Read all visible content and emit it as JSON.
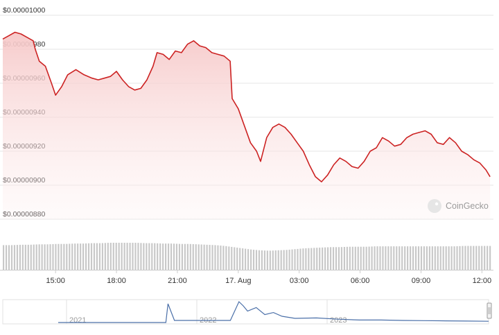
{
  "chart_data": {
    "type": "area",
    "title": "",
    "watermark": "CoinGecko",
    "y_ticks": [
      "$0.00001000",
      "$0.00000980",
      "$0.00000960",
      "$0.00000940",
      "$0.00000920",
      "$0.00000900",
      "$0.00000880"
    ],
    "y_tick_values": [
      1e-05,
      9.8e-06,
      9.6e-06,
      9.4e-06,
      9.2e-06,
      9e-06,
      8.8e-06
    ],
    "ylim": [
      8.8e-06,
      1e-05
    ],
    "x_ticks": [
      "15:00",
      "18:00",
      "21:00",
      "17. Aug",
      "03:00",
      "06:00",
      "09:00",
      "12:00"
    ],
    "x_tick_hours": [
      15,
      18,
      21,
      24,
      27,
      30,
      33,
      36
    ],
    "xlim_hours": [
      12.4,
      36.5
    ],
    "grid": true,
    "colors": {
      "line": "#cc2222",
      "fill_top": "#f6c8c8",
      "volume": "#c8c8c8",
      "navigator_line": "#4a6fa8",
      "grid": "#e6e6e6"
    },
    "series": [
      {
        "x": [
          12.4,
          12.7,
          13.0,
          13.3,
          13.6,
          13.9,
          14.0,
          14.2,
          14.5,
          14.8,
          15.0,
          15.3,
          15.6,
          16.0,
          16.4,
          16.8,
          17.1,
          17.4,
          17.7,
          18.0,
          18.3,
          18.6,
          18.9,
          19.2,
          19.5,
          19.8,
          20.0,
          20.3,
          20.6,
          20.9,
          21.2,
          21.5,
          21.8,
          22.1,
          22.4,
          22.7,
          23.0,
          23.3,
          23.6,
          23.7,
          24.0,
          24.3,
          24.6,
          24.9,
          25.1,
          25.4,
          25.7,
          26.0,
          26.3,
          26.6,
          26.9,
          27.2,
          27.5,
          27.8,
          28.1,
          28.4,
          28.7,
          29.0,
          29.3,
          29.6,
          29.9,
          30.2,
          30.5,
          30.8,
          31.1,
          31.4,
          31.7,
          32.0,
          32.3,
          32.6,
          32.9,
          33.2,
          33.5,
          33.8,
          34.1,
          34.4,
          34.7,
          35.0,
          35.3,
          35.6,
          35.9,
          36.2,
          36.4
        ],
        "y": [
          9.86e-06,
          9.88e-06,
          9.9e-06,
          9.89e-06,
          9.87e-06,
          9.85e-06,
          9.8e-06,
          9.73e-06,
          9.7e-06,
          9.6e-06,
          9.53e-06,
          9.58e-06,
          9.65e-06,
          9.68e-06,
          9.65e-06,
          9.63e-06,
          9.62e-06,
          9.63e-06,
          9.64e-06,
          9.67e-06,
          9.62e-06,
          9.58e-06,
          9.56e-06,
          9.57e-06,
          9.62e-06,
          9.7e-06,
          9.78e-06,
          9.77e-06,
          9.74e-06,
          9.79e-06,
          9.78e-06,
          9.83e-06,
          9.85e-06,
          9.82e-06,
          9.81e-06,
          9.78e-06,
          9.77e-06,
          9.76e-06,
          9.73e-06,
          9.51e-06,
          9.45e-06,
          9.35e-06,
          9.25e-06,
          9.2e-06,
          9.14e-06,
          9.28e-06,
          9.34e-06,
          9.36e-06,
          9.34e-06,
          9.3e-06,
          9.25e-06,
          9.2e-06,
          9.12e-06,
          9.05e-06,
          9.02e-06,
          9.06e-06,
          9.12e-06,
          9.16e-06,
          9.14e-06,
          9.11e-06,
          9.1e-06,
          9.14e-06,
          9.2e-06,
          9.22e-06,
          9.28e-06,
          9.26e-06,
          9.23e-06,
          9.24e-06,
          9.28e-06,
          9.3e-06,
          9.31e-06,
          9.32e-06,
          9.3e-06,
          9.25e-06,
          9.24e-06,
          9.28e-06,
          9.25e-06,
          9.2e-06,
          9.18e-06,
          9.15e-06,
          9.13e-06,
          9.09e-06,
          9.05e-06
        ]
      }
    ],
    "volume": {
      "x_start": 12.4,
      "x_end": 36.5,
      "count": 178,
      "values": [
        62,
        62,
        63,
        63,
        64,
        64,
        65,
        65,
        66,
        66,
        67,
        67,
        68,
        68,
        68,
        68,
        67,
        67,
        66,
        66,
        65,
        65,
        64,
        63,
        62,
        60,
        57,
        54,
        51,
        49,
        48,
        49,
        50,
        52,
        54,
        55,
        56,
        57,
        57,
        58,
        58,
        58,
        59,
        59,
        59,
        59,
        59,
        59,
        59,
        59,
        59,
        59,
        60,
        60,
        60,
        60
      ]
    },
    "navigator": {
      "ticks": [
        "2021",
        "2022",
        "2023"
      ],
      "tick_positions": [
        0.0,
        0.4,
        0.8
      ],
      "x": [
        0.0,
        0.12,
        0.22,
        0.25,
        0.255,
        0.27,
        0.4,
        0.42,
        0.43,
        0.44,
        0.46,
        0.48,
        0.5,
        0.52,
        0.55,
        0.6,
        0.65,
        0.7,
        0.75,
        0.8,
        0.85,
        0.9,
        0.95,
        1.0
      ],
      "y": [
        0.0,
        0.0,
        0.0,
        0.0,
        0.9,
        0.1,
        0.1,
        1.0,
        0.8,
        0.55,
        0.72,
        0.38,
        0.48,
        0.3,
        0.2,
        0.22,
        0.16,
        0.12,
        0.12,
        0.1,
        0.09,
        0.08,
        0.07,
        0.06
      ]
    }
  }
}
